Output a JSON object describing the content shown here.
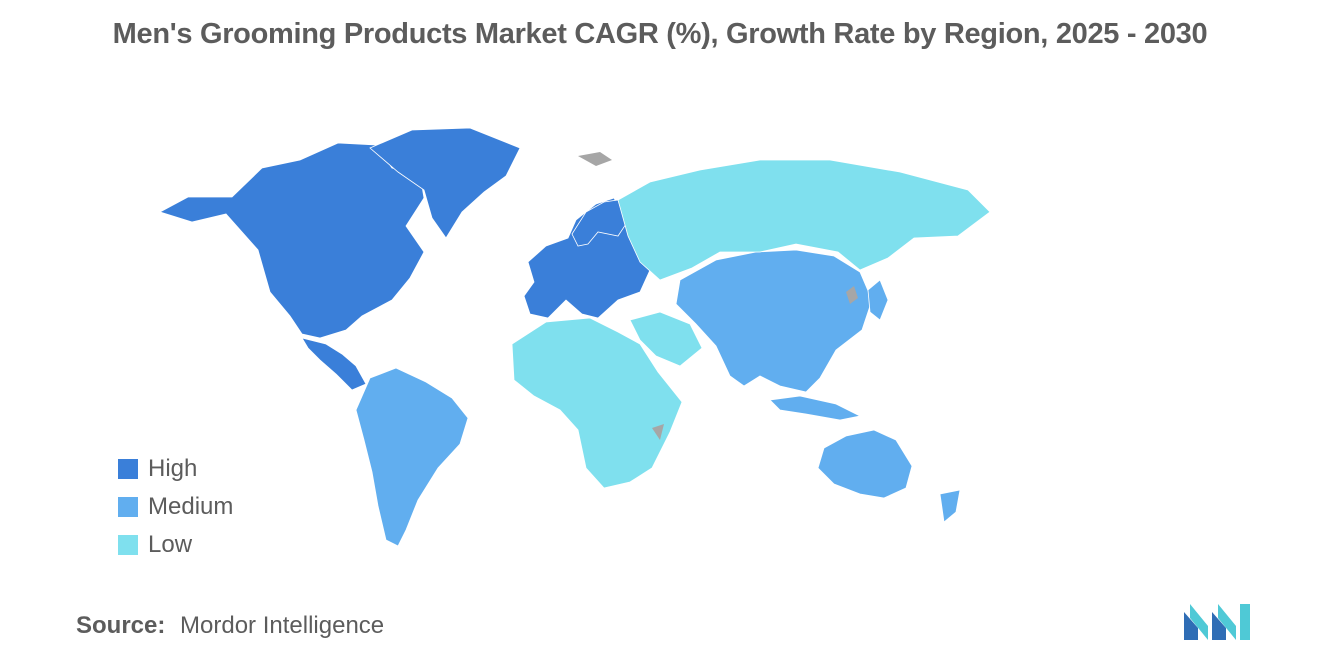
{
  "title": "Men's Grooming Products Market CAGR (%), Growth Rate by Region, 2025 - 2030",
  "legend": {
    "items": [
      {
        "label": "High",
        "color": "#3a7fd9"
      },
      {
        "label": "Medium",
        "color": "#61aeef"
      },
      {
        "label": "Low",
        "color": "#7fe0ee"
      }
    ]
  },
  "colors": {
    "no_data": "#a6a6a6",
    "logo_dark": "#2f6db5",
    "logo_light": "#4fc9d6"
  },
  "source": {
    "label": "Source:",
    "value": "Mordor Intelligence"
  },
  "chart_data": {
    "type": "choropleth",
    "regions": [
      {
        "name": "North America",
        "level": "High"
      },
      {
        "name": "Europe",
        "level": "High"
      },
      {
        "name": "South America",
        "level": "Medium"
      },
      {
        "name": "Asia-Pacific",
        "level": "Medium"
      },
      {
        "name": "Middle East and Africa",
        "level": "Low"
      },
      {
        "name": "Russia and Central Asia",
        "level": "Low"
      }
    ]
  }
}
